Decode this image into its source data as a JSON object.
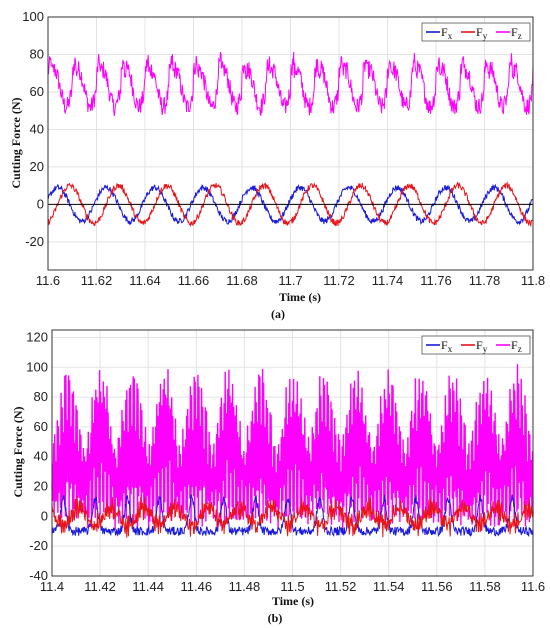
{
  "chart_data": [
    {
      "type": "line",
      "panel_label": "(a)",
      "xlabel": "Time (s)",
      "ylabel": "Cutting Force (N)",
      "xlim": [
        11.6,
        11.8
      ],
      "ylim": [
        -35,
        100
      ],
      "xticks": [
        "11.6",
        "11.62",
        "11.64",
        "11.66",
        "11.68",
        "11.7",
        "11.72",
        "11.74",
        "11.76",
        "11.78",
        "11.8"
      ],
      "yticks": [
        "-20",
        "0",
        "20",
        "40",
        "60",
        "80",
        "100"
      ],
      "grid": true,
      "legend_position": "top-right",
      "series": [
        {
          "name": "F",
          "subscript": "x",
          "color": "#1a1adc",
          "description_values": {
            "mean": 0,
            "amplitude": 9,
            "period_s": 0.02,
            "phase_peak_s": 11.604
          }
        },
        {
          "name": "F",
          "subscript": "y",
          "color": "#e8141a",
          "description_values": {
            "mean": 0,
            "amplitude": 10,
            "period_s": 0.02,
            "phase_peak_s": 11.609
          }
        },
        {
          "name": "F",
          "subscript": "z",
          "color": "#ff00ff",
          "description_values": {
            "mean": 62,
            "amplitude": 12,
            "period_s": 0.01,
            "max": 85,
            "min": 42
          }
        }
      ]
    },
    {
      "type": "line",
      "panel_label": "(b)",
      "xlabel": "Time (s)",
      "ylabel": "Cutting Force (N)",
      "xlim": [
        11.4,
        11.6
      ],
      "ylim": [
        -40,
        125
      ],
      "xticks": [
        "11.4",
        "11.42",
        "11.44",
        "11.46",
        "11.48",
        "11.5",
        "11.52",
        "11.54",
        "11.56",
        "11.58",
        "11.6"
      ],
      "yticks": [
        "-40",
        "-20",
        "0",
        "20",
        "40",
        "60",
        "80",
        "100",
        "120"
      ],
      "grid": true,
      "legend_position": "top-right",
      "series": [
        {
          "name": "F",
          "subscript": "x",
          "color": "#1a1adc",
          "description_values": {
            "min": -15,
            "max": 15
          }
        },
        {
          "name": "F",
          "subscript": "y",
          "color": "#e8141a",
          "description_values": {
            "min": -20,
            "max": 18
          }
        },
        {
          "name": "F",
          "subscript": "z",
          "color": "#ff00ff",
          "description_values": {
            "min": -12,
            "max": 118,
            "period_s": 0.0133
          }
        }
      ]
    }
  ]
}
